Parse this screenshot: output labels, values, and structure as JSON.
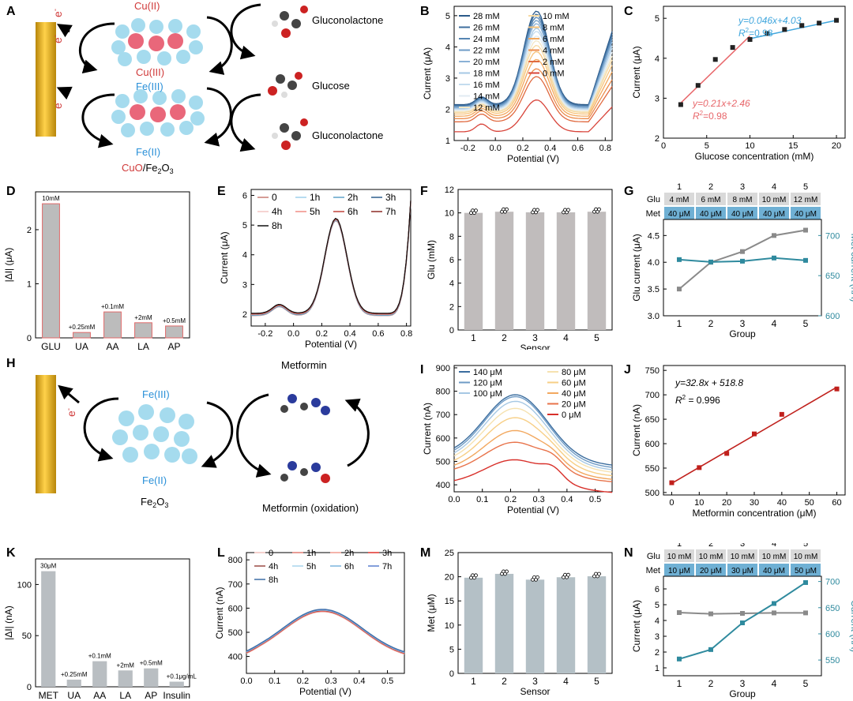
{
  "labels": {
    "A": "A",
    "B": "B",
    "C": "C",
    "D": "D",
    "E": "E",
    "F": "F",
    "G": "G",
    "H": "H",
    "I": "I",
    "J": "J",
    "K": "K",
    "L": "L",
    "M": "M",
    "N": "N"
  },
  "schemeA": {
    "cu2": "Cu(II)",
    "cu3": "Cu(III)",
    "fe3": "Fe(III)",
    "fe2": "Fe(II)",
    "gluconolactone": "Gluconolactone",
    "glucose": "Glucose",
    "catalyst_cu": "CuO",
    "catalyst_fe": "/Fe",
    "catalyst_sub2": "2",
    "catalyst_o": "O",
    "catalyst_sub3": "3",
    "e1": "e",
    "e2": "e",
    "e3": "e",
    "eminus": "-"
  },
  "schemeH": {
    "fe3": "Fe(III)",
    "fe2": "Fe(II)",
    "catalyst_fe": "Fe",
    "catalyst_sub2": "2",
    "catalyst_o": "O",
    "catalyst_sub3": "3",
    "metformin": "Metformin",
    "metformin_ox": "Metformin (oxidation)",
    "e1": "e",
    "eminus": "-"
  },
  "chart_data": [
    {
      "panel": "B",
      "type": "line",
      "xlabel": "Potential (V)",
      "ylabel": "Current (μA)",
      "xlim": [
        -0.3,
        0.85
      ],
      "ylim": [
        1,
        5.3
      ],
      "xticks": [
        "-0.2",
        "0.0",
        "0.2",
        "0.4",
        "0.6",
        "0.8"
      ],
      "yticks": [
        "1",
        "2",
        "3",
        "4",
        "5"
      ],
      "legend": [
        "28 mM",
        "26 mM",
        "24 mM",
        "22 mM",
        "20 mM",
        "18 mM",
        "16 mM",
        "14 mM",
        "12 mM",
        "10 mM",
        "8 mM",
        "6 mM",
        "4 mM",
        "2 mM",
        "0 mM"
      ],
      "colors": [
        "#2b5a8a",
        "#3f6f9e",
        "#5585b3",
        "#6e9bc6",
        "#8ab1d6",
        "#a6c8e4",
        "#c4dcef",
        "#e1ebf2",
        "#f2e7c6",
        "#f6d9a2",
        "#f7c47c",
        "#f3a95e",
        "#ec8c4c",
        "#e06a40",
        "#d8443a"
      ],
      "peaks": [
        5.15,
        5.05,
        4.95,
        4.85,
        4.75,
        4.6,
        4.5,
        4.35,
        4.2,
        4.05,
        3.85,
        3.6,
        3.3,
        3.05,
        2.3
      ],
      "bases": [
        2.15,
        2.12,
        2.1,
        2.08,
        2.05,
        2.02,
        2.0,
        1.97,
        1.93,
        1.9,
        1.85,
        1.78,
        1.7,
        1.6,
        1.28
      ]
    },
    {
      "panel": "C",
      "type": "scatter",
      "xlabel": "Glucose concentration (mM)",
      "ylabel": "Current (μA)",
      "xlim": [
        0,
        21
      ],
      "ylim": [
        2,
        5.3
      ],
      "xticks": [
        "0",
        "5",
        "10",
        "15",
        "20"
      ],
      "yticks": [
        "2",
        "3",
        "4",
        "5"
      ],
      "x": [
        2,
        4,
        6,
        8,
        10,
        12,
        14,
        16,
        18,
        20
      ],
      "y": [
        2.84,
        3.32,
        3.97,
        4.27,
        4.47,
        4.62,
        4.72,
        4.82,
        4.88,
        4.95
      ],
      "fit_low": {
        "eq": "y=0.21x+2.46",
        "r2": "R2=0.98",
        "r_label": "R",
        "sup": "2",
        "r_value": "=0.98",
        "color": "#e8676b"
      },
      "fit_high": {
        "eq": "y=0.046x+4.03",
        "r2": "R2=0.98",
        "r_label": "R",
        "sup": "2",
        "r_value": "=0.98",
        "color": "#3fa6dd"
      }
    },
    {
      "panel": "D",
      "type": "bar",
      "ylabel": "|ΔI| (μA)",
      "ylim": [
        0,
        2.7
      ],
      "yticks": [
        "0",
        "1",
        "2"
      ],
      "categories": [
        "GLU",
        "UA",
        "AA",
        "LA",
        "AP"
      ],
      "values": [
        2.48,
        0.1,
        0.48,
        0.28,
        0.22
      ],
      "annotations": [
        "10mM",
        "+0.25mM",
        "+0.1mM",
        "+2mM",
        "+0.5mM"
      ]
    },
    {
      "panel": "E",
      "type": "line",
      "xlabel": "Potential (V)",
      "ylabel": "Current (μA)",
      "xlim": [
        -0.3,
        0.83
      ],
      "ylim": [
        1.6,
        6.2
      ],
      "xticks": [
        "-0.2",
        "0.0",
        "0.2",
        "0.4",
        "0.6",
        "0.8"
      ],
      "yticks": [
        "2",
        "3",
        "4",
        "5",
        "6"
      ],
      "legend": [
        "0",
        "1h",
        "2h",
        "3h",
        "4h",
        "5h",
        "6h",
        "7h",
        "8h"
      ],
      "colors": [
        "#c77a72",
        "#9fd0ea",
        "#5fa3c8",
        "#2f5f8e",
        "#f2c6c2",
        "#f08e86",
        "#c0433a",
        "#8c2b24",
        "#111111"
      ]
    },
    {
      "panel": "F",
      "type": "bar",
      "xlabel": "Sensor",
      "ylabel": "Glu (mM)",
      "ylim": [
        0,
        12
      ],
      "yticks": [
        "0",
        "2",
        "4",
        "6",
        "8",
        "10",
        "12"
      ],
      "categories": [
        "1",
        "2",
        "3",
        "4",
        "5"
      ],
      "values": [
        10.0,
        10.1,
        10.05,
        10.05,
        10.1
      ]
    },
    {
      "panel": "G",
      "type": "line",
      "xlabel": "Group",
      "ylabel": "Glu current (μA)",
      "y2label": "Met current (nA)",
      "categories": [
        "1",
        "2",
        "3",
        "4",
        "5"
      ],
      "ylim": [
        3.0,
        4.8
      ],
      "yticks": [
        "3.0",
        "3.5",
        "4.0",
        "4.5"
      ],
      "y2lim": [
        600,
        720
      ],
      "y2ticks": [
        "600",
        "650",
        "700"
      ],
      "series": [
        {
          "name": "Glu",
          "values": [
            3.5,
            4.0,
            4.2,
            4.5,
            4.6
          ],
          "color": "#8a8a8a"
        },
        {
          "name": "Met",
          "values": [
            670,
            667,
            668,
            672,
            669
          ],
          "color": "#2f8a9e"
        }
      ],
      "table": {
        "row1_label": "Glu",
        "row2_label": "Met",
        "row1": [
          "4 mM",
          "6 mM",
          "8 mM",
          "10 mM",
          "12 mM"
        ],
        "row2": [
          "40 μM",
          "40 μM",
          "40 μM",
          "40 μM",
          "40 μM"
        ]
      }
    },
    {
      "panel": "I",
      "type": "line",
      "xlabel": "Potential (V)",
      "ylabel": "Current (nA)",
      "xlim": [
        0,
        0.56
      ],
      "ylim": [
        370,
        910
      ],
      "xticks": [
        "0.0",
        "0.1",
        "0.2",
        "0.3",
        "0.4",
        "0.5"
      ],
      "yticks": [
        "400",
        "500",
        "600",
        "700",
        "800",
        "900"
      ],
      "legend": [
        "140 μM",
        "120 μM",
        "100 μM",
        "80 μM",
        "60 μM",
        "40 μM",
        "20 μM",
        "0 μM"
      ],
      "colors": [
        "#3b6d9e",
        "#6e9bc6",
        "#a6c8e4",
        "#f6e2b0",
        "#f7cf86",
        "#f2a85f",
        "#e8734a",
        "#d8302a"
      ]
    },
    {
      "panel": "J",
      "type": "scatter",
      "xlabel": "Metformin concentration (μM)",
      "ylabel": "Current (nA)",
      "xlim": [
        -3,
        63
      ],
      "ylim": [
        495,
        760
      ],
      "xticks": [
        "0",
        "10",
        "20",
        "30",
        "40",
        "50",
        "60"
      ],
      "yticks": [
        "500",
        "550",
        "600",
        "650",
        "700",
        "750"
      ],
      "x": [
        0,
        10,
        20,
        30,
        40,
        60
      ],
      "y": [
        520,
        551,
        580,
        620,
        660,
        712
      ],
      "eq": "y=32.8x + 518.8",
      "r_label": "R",
      "sup": "2",
      "r_value": " = 0.996"
    },
    {
      "panel": "K",
      "type": "bar",
      "ylabel": "|ΔI| (nA)",
      "ylim": [
        0,
        125
      ],
      "yticks": [
        "0",
        "50",
        "100"
      ],
      "categories": [
        "MET",
        "UA",
        "AA",
        "LA",
        "AP",
        "Insulin"
      ],
      "values": [
        113,
        7,
        25,
        16,
        18,
        5
      ],
      "annotations": [
        "30μM",
        "+0.25mM",
        "+0.1mM",
        "+2mM",
        "+0.5mM",
        "+0.1μg/mL"
      ]
    },
    {
      "panel": "L",
      "type": "line",
      "xlabel": "Potential (V)",
      "ylabel": "Current (nA)",
      "xlim": [
        0,
        0.56
      ],
      "ylim": [
        330,
        830
      ],
      "xticks": [
        "0.0",
        "0.1",
        "0.2",
        "0.3",
        "0.4",
        "0.5"
      ],
      "yticks": [
        "400",
        "500",
        "600",
        "700",
        "800"
      ],
      "legend": [
        "0",
        "1h",
        "2h",
        "3h",
        "4h",
        "5h",
        "6h",
        "7h",
        "8h"
      ],
      "colors": [
        "#f0c0bc",
        "#e07a72",
        "#f09a8f",
        "#e0302a",
        "#9a4a44",
        "#a8d4ec",
        "#7ab4dd",
        "#5b7fcf",
        "#3d6ea6"
      ]
    },
    {
      "panel": "M",
      "type": "bar",
      "xlabel": "Sensor",
      "ylabel": "Met (μM)",
      "ylim": [
        0,
        25
      ],
      "yticks": [
        "0",
        "5",
        "10",
        "15",
        "20",
        "25"
      ],
      "categories": [
        "1",
        "2",
        "3",
        "4",
        "5"
      ],
      "values": [
        19.8,
        20.6,
        19.4,
        19.9,
        20.1
      ]
    },
    {
      "panel": "N",
      "type": "line",
      "xlabel": "Group",
      "ylabel": "Current (μA)",
      "y2label": "Current (nA)",
      "categories": [
        "1",
        "2",
        "3",
        "4",
        "5"
      ],
      "ylim": [
        0.5,
        6.8
      ],
      "yticks": [
        "1",
        "2",
        "3",
        "4",
        "5",
        "6"
      ],
      "y2lim": [
        520,
        710
      ],
      "y2ticks": [
        "550",
        "600",
        "650",
        "700"
      ],
      "series": [
        {
          "name": "Glu",
          "values": [
            4.5,
            4.42,
            4.45,
            4.48,
            4.48
          ],
          "color": "#8a8a8a"
        },
        {
          "name": "Met",
          "values": [
            552,
            570,
            621,
            658,
            698
          ],
          "color": "#2f8a9e"
        }
      ],
      "table": {
        "row1_label": "Glu",
        "row2_label": "Met",
        "row1": [
          "10 mM",
          "10 mM",
          "10 mM",
          "10 mM",
          "10 mM"
        ],
        "row2": [
          "10 μM",
          "20 μM",
          "30 μM",
          "40 μM",
          "50 μM"
        ]
      }
    }
  ]
}
